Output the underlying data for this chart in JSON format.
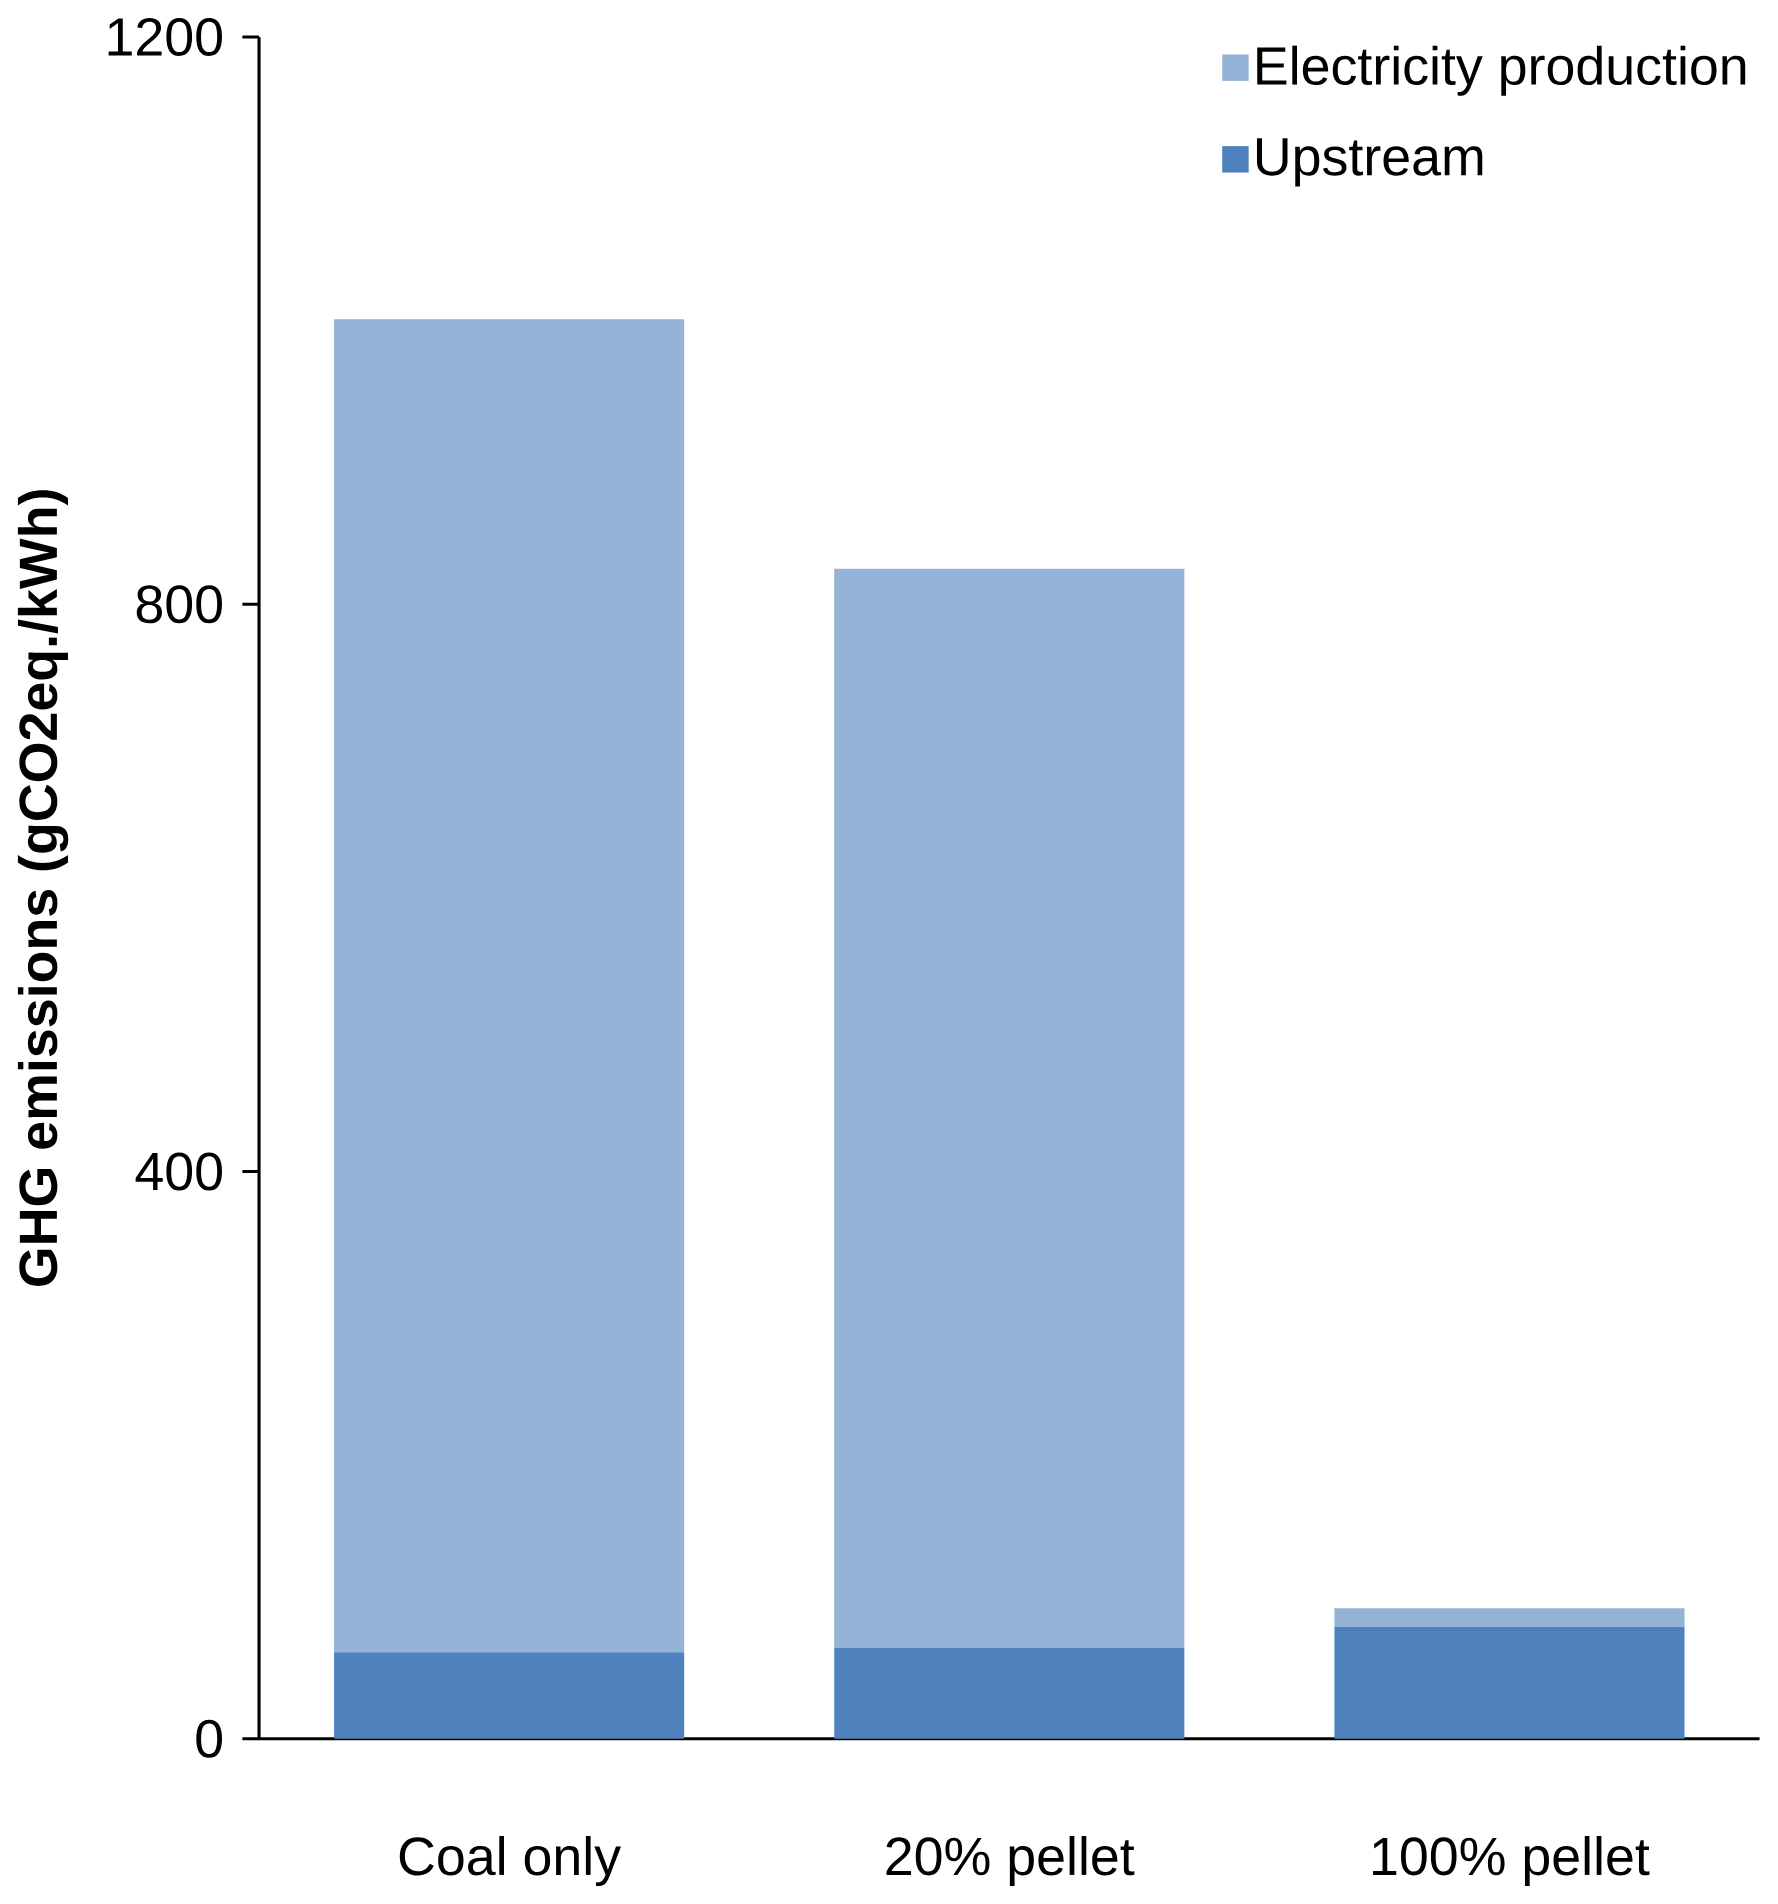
{
  "chart_data": {
    "type": "bar",
    "stacked": true,
    "ylabel": "GHG emissions (gCO2eq./kWh)",
    "categories": [
      "Coal only",
      "20% pellet",
      "100% pellet"
    ],
    "series": [
      {
        "name": "Upstream",
        "color": "#4f81bd",
        "values": [
          61,
          64,
          79
        ]
      },
      {
        "name": "Electricity production",
        "color": "#95b3d7",
        "values": [
          940,
          761,
          13
        ]
      }
    ],
    "ylim": [
      0,
      1200
    ],
    "yticks": [
      0,
      400,
      800,
      1200
    ],
    "grid": false,
    "legend": "top right"
  }
}
